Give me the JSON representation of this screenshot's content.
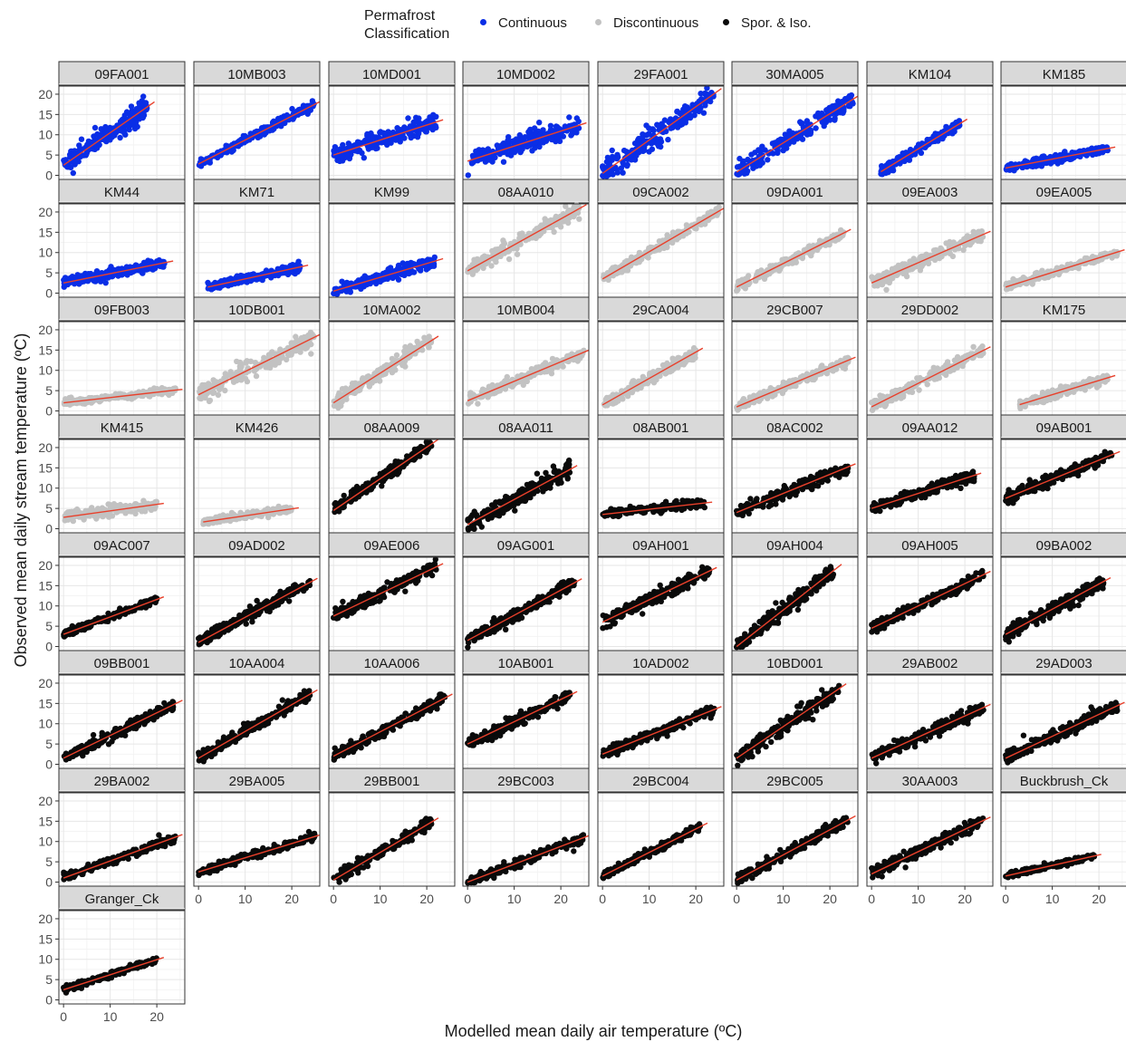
{
  "legend": {
    "title_line1": "Permafrost",
    "title_line2": "Classification",
    "items": [
      {
        "label": "Continuous",
        "color": "#0a2ee6"
      },
      {
        "label": "Discontinuous",
        "color": "#c2c2c2"
      },
      {
        "label": "Spor. & Iso.",
        "color": "#0a0a0a"
      }
    ]
  },
  "chart_data": {
    "type": "scatter",
    "xlabel": "Modelled mean daily air temperature (ºC)",
    "ylabel": "Observed mean daily stream temperature (ºC)",
    "xlim": [
      -1,
      26
    ],
    "ylim": [
      -1,
      22
    ],
    "x_ticks": [
      0,
      10,
      20
    ],
    "y_ticks": [
      0,
      5,
      10,
      15,
      20
    ],
    "grid": true,
    "legend_position": "top",
    "fit_line_color": "#e8402b",
    "panels": [
      {
        "name": "09FA001",
        "class": "Continuous",
        "x_range": [
          0,
          18
        ],
        "fit": [
          2.5,
          0.8
        ],
        "noise": 2.3
      },
      {
        "name": "10MB003",
        "class": "Continuous",
        "x_range": [
          0,
          25
        ],
        "fit": [
          2.8,
          0.59
        ],
        "noise": 1.0
      },
      {
        "name": "10MD001",
        "class": "Continuous",
        "x_range": [
          0,
          22
        ],
        "fit": [
          5.0,
          0.37
        ],
        "noise": 1.8
      },
      {
        "name": "10MD002",
        "class": "Continuous",
        "x_range": [
          0,
          24
        ],
        "fit": [
          3.5,
          0.37
        ],
        "noise": 2.2
      },
      {
        "name": "29FA001",
        "class": "Continuous",
        "x_range": [
          0,
          24
        ],
        "fit": [
          0.5,
          0.82
        ],
        "noise": 2.6
      },
      {
        "name": "30MA005",
        "class": "Continuous",
        "x_range": [
          0,
          25
        ],
        "fit": [
          0.8,
          0.72
        ],
        "noise": 2.0
      },
      {
        "name": "KM104",
        "class": "Continuous",
        "x_range": [
          2,
          19
        ],
        "fit": [
          -0.5,
          0.7
        ],
        "noise": 1.0
      },
      {
        "name": "KM185",
        "class": "Continuous",
        "x_range": [
          0,
          22
        ],
        "fit": [
          1.8,
          0.22
        ],
        "noise": 0.9
      },
      {
        "name": "KM44",
        "class": "Continuous",
        "x_range": [
          0,
          22
        ],
        "fit": [
          2.5,
          0.23
        ],
        "noise": 1.2
      },
      {
        "name": "KM71",
        "class": "Continuous",
        "x_range": [
          2,
          22
        ],
        "fit": [
          1.0,
          0.25
        ],
        "noise": 0.9
      },
      {
        "name": "KM99",
        "class": "Continuous",
        "x_range": [
          0,
          22
        ],
        "fit": [
          0.5,
          0.34
        ],
        "noise": 1.2
      },
      {
        "name": "08AA010",
        "class": "Discontinuous",
        "x_range": [
          0,
          24
        ],
        "fit": [
          5.5,
          0.64
        ],
        "noise": 1.5
      },
      {
        "name": "09CA002",
        "class": "Discontinuous",
        "x_range": [
          0,
          25
        ],
        "fit": [
          3.5,
          0.67
        ],
        "noise": 1.1
      },
      {
        "name": "09DA001",
        "class": "Discontinuous",
        "x_range": [
          0,
          23
        ],
        "fit": [
          1.5,
          0.58
        ],
        "noise": 1.2
      },
      {
        "name": "09EA003",
        "class": "Discontinuous",
        "x_range": [
          0,
          24
        ],
        "fit": [
          2.5,
          0.5
        ],
        "noise": 1.6
      },
      {
        "name": "09EA005",
        "class": "Discontinuous",
        "x_range": [
          0,
          24
        ],
        "fit": [
          1.5,
          0.36
        ],
        "noise": 0.9
      },
      {
        "name": "09FB003",
        "class": "Discontinuous",
        "x_range": [
          0,
          24
        ],
        "fit": [
          2.0,
          0.13
        ],
        "noise": 0.7
      },
      {
        "name": "10DB001",
        "class": "Discontinuous",
        "x_range": [
          0,
          25
        ],
        "fit": [
          4.0,
          0.57
        ],
        "noise": 2.2
      },
      {
        "name": "10MA002",
        "class": "Discontinuous",
        "x_range": [
          0,
          21
        ],
        "fit": [
          2.0,
          0.73
        ],
        "noise": 1.6
      },
      {
        "name": "10MB004",
        "class": "Discontinuous",
        "x_range": [
          0,
          25
        ],
        "fit": [
          2.5,
          0.48
        ],
        "noise": 1.2
      },
      {
        "name": "29CA004",
        "class": "Discontinuous",
        "x_range": [
          0,
          20
        ],
        "fit": [
          1.5,
          0.65
        ],
        "noise": 1.2
      },
      {
        "name": "29CB007",
        "class": "Discontinuous",
        "x_range": [
          0,
          24
        ],
        "fit": [
          1.0,
          0.48
        ],
        "noise": 1.0
      },
      {
        "name": "29DD002",
        "class": "Discontinuous",
        "x_range": [
          0,
          24
        ],
        "fit": [
          1.0,
          0.58
        ],
        "noise": 1.2
      },
      {
        "name": "KM175",
        "class": "Discontinuous",
        "x_range": [
          3,
          22
        ],
        "fit": [
          0.5,
          0.35
        ],
        "noise": 0.9
      },
      {
        "name": "KM415",
        "class": "Discontinuous",
        "x_range": [
          0,
          20
        ],
        "fit": [
          2.8,
          0.16
        ],
        "noise": 1.0
      },
      {
        "name": "KM426",
        "class": "Discontinuous",
        "x_range": [
          1,
          20
        ],
        "fit": [
          1.5,
          0.17
        ],
        "noise": 0.7
      },
      {
        "name": "08AA009",
        "class": "Spor. & Iso.",
        "x_range": [
          0,
          21
        ],
        "fit": [
          4.5,
          0.78
        ],
        "noise": 1.4
      },
      {
        "name": "08AA011",
        "class": "Spor. & Iso.",
        "x_range": [
          0,
          22
        ],
        "fit": [
          1.0,
          0.62
        ],
        "noise": 2.0
      },
      {
        "name": "08AB001",
        "class": "Spor. & Iso.",
        "x_range": [
          0,
          22
        ],
        "fit": [
          3.5,
          0.13
        ],
        "noise": 0.9
      },
      {
        "name": "08AC002",
        "class": "Spor. & Iso.",
        "x_range": [
          0,
          24
        ],
        "fit": [
          4.0,
          0.47
        ],
        "noise": 1.3
      },
      {
        "name": "09AA012",
        "class": "Spor. & Iso.",
        "x_range": [
          0,
          22
        ],
        "fit": [
          5.0,
          0.37
        ],
        "noise": 1.2
      },
      {
        "name": "09AB001",
        "class": "Spor. & Iso.",
        "x_range": [
          0,
          23
        ],
        "fit": [
          7.5,
          0.47
        ],
        "noise": 1.3
      },
      {
        "name": "09AC007",
        "class": "Spor. & Iso.",
        "x_range": [
          0,
          20
        ],
        "fit": [
          3.0,
          0.43
        ],
        "noise": 0.8
      },
      {
        "name": "09AD002",
        "class": "Spor. & Iso.",
        "x_range": [
          0,
          24
        ],
        "fit": [
          1.0,
          0.62
        ],
        "noise": 1.3
      },
      {
        "name": "09AE006",
        "class": "Spor. & Iso.",
        "x_range": [
          0,
          22
        ],
        "fit": [
          7.5,
          0.55
        ],
        "noise": 1.4
      },
      {
        "name": "09AG001",
        "class": "Spor. & Iso.",
        "x_range": [
          0,
          23
        ],
        "fit": [
          1.5,
          0.62
        ],
        "noise": 1.4
      },
      {
        "name": "09AH001",
        "class": "Spor. & Iso.",
        "x_range": [
          0,
          23
        ],
        "fit": [
          6.0,
          0.55
        ],
        "noise": 1.5
      },
      {
        "name": "09AH004",
        "class": "Spor. & Iso.",
        "x_range": [
          0,
          21
        ],
        "fit": [
          0.0,
          0.9
        ],
        "noise": 1.8
      },
      {
        "name": "09AH005",
        "class": "Spor. & Iso.",
        "x_range": [
          0,
          24
        ],
        "fit": [
          4.5,
          0.55
        ],
        "noise": 1.2
      },
      {
        "name": "09BA002",
        "class": "Spor. & Iso.",
        "x_range": [
          0,
          21
        ],
        "fit": [
          3.0,
          0.62
        ],
        "noise": 1.4
      },
      {
        "name": "09BB001",
        "class": "Spor. & Iso.",
        "x_range": [
          0,
          24
        ],
        "fit": [
          1.5,
          0.56
        ],
        "noise": 1.2
      },
      {
        "name": "10AA004",
        "class": "Spor. & Iso.",
        "x_range": [
          0,
          24
        ],
        "fit": [
          1.5,
          0.66
        ],
        "noise": 1.3
      },
      {
        "name": "10AA006",
        "class": "Spor. & Iso.",
        "x_range": [
          0,
          24
        ],
        "fit": [
          2.0,
          0.6
        ],
        "noise": 1.3
      },
      {
        "name": "10AB001",
        "class": "Spor. & Iso.",
        "x_range": [
          0,
          22
        ],
        "fit": [
          5.0,
          0.55
        ],
        "noise": 1.3
      },
      {
        "name": "10AD002",
        "class": "Spor. & Iso.",
        "x_range": [
          0,
          24
        ],
        "fit": [
          2.5,
          0.46
        ],
        "noise": 1.2
      },
      {
        "name": "10BD001",
        "class": "Spor. & Iso.",
        "x_range": [
          0,
          22
        ],
        "fit": [
          1.5,
          0.78
        ],
        "noise": 1.8
      },
      {
        "name": "29AB002",
        "class": "Spor. & Iso.",
        "x_range": [
          0,
          24
        ],
        "fit": [
          1.5,
          0.52
        ],
        "noise": 1.4
      },
      {
        "name": "29AD003",
        "class": "Spor. & Iso.",
        "x_range": [
          0,
          24
        ],
        "fit": [
          1.5,
          0.54
        ],
        "noise": 1.4
      },
      {
        "name": "29BA002",
        "class": "Spor. & Iso.",
        "x_range": [
          0,
          24
        ],
        "fit": [
          1.0,
          0.42
        ],
        "noise": 0.9
      },
      {
        "name": "29BA005",
        "class": "Spor. & Iso.",
        "x_range": [
          0,
          25
        ],
        "fit": [
          2.5,
          0.35
        ],
        "noise": 0.8
      },
      {
        "name": "29BB001",
        "class": "Spor. & Iso.",
        "x_range": [
          0,
          21
        ],
        "fit": [
          0.5,
          0.68
        ],
        "noise": 1.2
      },
      {
        "name": "29BC003",
        "class": "Spor. & Iso.",
        "x_range": [
          0,
          25
        ],
        "fit": [
          0.0,
          0.44
        ],
        "noise": 1.0
      },
      {
        "name": "29BC004",
        "class": "Spor. & Iso.",
        "x_range": [
          0,
          21
        ],
        "fit": [
          1.5,
          0.58
        ],
        "noise": 0.9
      },
      {
        "name": "29BC005",
        "class": "Spor. & Iso.",
        "x_range": [
          0,
          24
        ],
        "fit": [
          0.5,
          0.62
        ],
        "noise": 1.2
      },
      {
        "name": "30AA003",
        "class": "Spor. & Iso.",
        "x_range": [
          0,
          24
        ],
        "fit": [
          2.0,
          0.55
        ],
        "noise": 1.4
      },
      {
        "name": "Buckbrush_Ck",
        "class": "Spor. & Iso.",
        "x_range": [
          0,
          19
        ],
        "fit": [
          1.5,
          0.26
        ],
        "noise": 0.6
      },
      {
        "name": "Granger_Ck",
        "class": "Spor. & Iso.",
        "x_range": [
          0,
          20
        ],
        "fit": [
          2.5,
          0.37
        ],
        "noise": 0.7
      }
    ]
  }
}
